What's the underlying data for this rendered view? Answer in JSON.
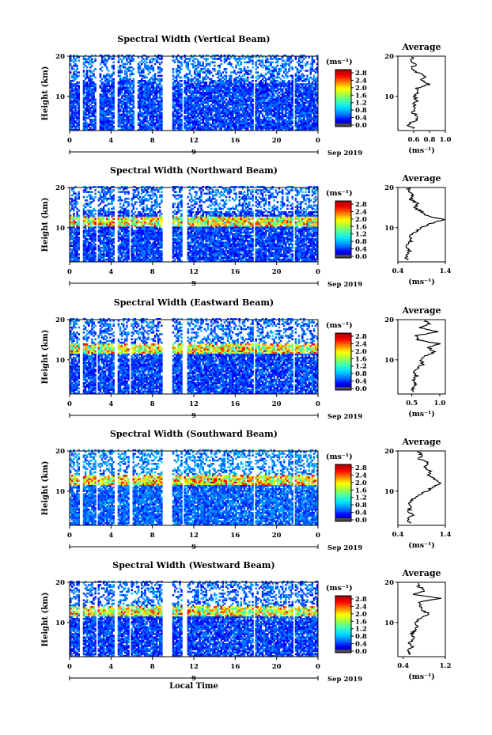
{
  "figure": {
    "x_axis_label": "Local Time",
    "date_label": "Sep 2019",
    "day_label": "9",
    "time_ticks": [
      "0",
      "4",
      "8",
      "12",
      "16",
      "20",
      "0"
    ],
    "height_ticks": [
      "20",
      "10"
    ],
    "y_axis_label": "Height (km)",
    "colorbar_unit": "(ms⁻¹)",
    "colorbar_ticks": [
      "2.8",
      "2.4",
      "2.0",
      "1.6",
      "1.2",
      "0.8",
      "0.4",
      "0.0"
    ],
    "profile_title": "Average",
    "profile_unit": "(ms⁻¹)"
  },
  "colors": {
    "colormap": [
      "#000080",
      "#0000ff",
      "#0080ff",
      "#00e0ff",
      "#40ffb0",
      "#a0ff40",
      "#ffff00",
      "#ff8000",
      "#ff0000",
      "#a00000"
    ],
    "colorbar_bottom": "#4a4a4a",
    "background": "#ffffff"
  },
  "chart_data": [
    {
      "type": "heatmap",
      "title": "Spectral Width (Vertical Beam)",
      "xlabel": "",
      "ylabel": "Height (km)",
      "xlim": [
        0,
        24
      ],
      "ylim": [
        1.5,
        20
      ],
      "color_range": [
        0.0,
        3.0
      ],
      "data_gaps_hours": [
        [
          1.0,
          1.3
        ],
        [
          2.5,
          2.9
        ],
        [
          4.3,
          4.6
        ],
        [
          6.2,
          6.6
        ],
        [
          8.9,
          10.0
        ],
        [
          10.9,
          11.1
        ],
        [
          17.8,
          18.0
        ],
        [
          21.6,
          21.8
        ]
      ],
      "enhanced_layer_km": null,
      "background_width": 0.5,
      "profile": {
        "title": "Average",
        "xlabel": "(ms⁻¹)",
        "xlim": [
          0.4,
          1.0
        ],
        "ticks": [
          "0.6",
          "0.8",
          "1.0"
        ],
        "height_km": [
          2,
          3,
          4,
          5,
          6,
          7,
          8,
          9,
          10,
          11,
          12,
          13,
          14,
          15,
          16,
          17,
          18,
          19,
          20
        ],
        "width": [
          0.6,
          0.52,
          0.62,
          0.66,
          0.58,
          0.62,
          0.6,
          0.65,
          0.6,
          0.66,
          0.63,
          0.8,
          0.7,
          0.76,
          0.64,
          0.58,
          0.62,
          0.56,
          0.6
        ]
      }
    },
    {
      "type": "heatmap",
      "title": "Spectral Width (Northward Beam)",
      "xlabel": "",
      "ylabel": "Height (km)",
      "xlim": [
        0,
        24
      ],
      "ylim": [
        1.5,
        20
      ],
      "color_range": [
        0.0,
        3.0
      ],
      "data_gaps_hours": [
        [
          1.0,
          1.3
        ],
        [
          2.5,
          2.7
        ],
        [
          4.3,
          4.6
        ],
        [
          5.7,
          5.9
        ],
        [
          8.9,
          10.0
        ],
        [
          10.9,
          11.3
        ],
        [
          17.8,
          18.0
        ],
        [
          21.6,
          21.8
        ]
      ],
      "enhanced_layer_km": 11.5,
      "background_width": 0.5,
      "profile": {
        "title": "Average",
        "xlabel": "(ms⁻¹)",
        "xlim": [
          0.4,
          1.4
        ],
        "ticks": [
          "0.4",
          "1.4"
        ],
        "height_km": [
          2,
          3,
          4,
          5,
          6,
          7,
          8,
          9,
          10,
          11,
          12,
          13,
          14,
          15,
          16,
          17,
          18,
          19,
          20
        ],
        "width": [
          0.62,
          0.55,
          0.66,
          0.58,
          0.63,
          0.7,
          0.62,
          0.78,
          0.88,
          1.1,
          1.38,
          1.0,
          0.9,
          0.75,
          0.82,
          0.66,
          0.72,
          0.62,
          0.65
        ]
      }
    },
    {
      "type": "heatmap",
      "title": "Spectral Width (Eastward Beam)",
      "xlabel": "",
      "ylabel": "Height (km)",
      "xlim": [
        0,
        24
      ],
      "ylim": [
        1.5,
        20
      ],
      "color_range": [
        0.0,
        3.0
      ],
      "data_gaps_hours": [
        [
          1.0,
          1.3
        ],
        [
          2.5,
          2.7
        ],
        [
          4.3,
          4.6
        ],
        [
          5.7,
          5.9
        ],
        [
          8.9,
          10.0
        ],
        [
          10.9,
          11.3
        ],
        [
          17.8,
          18.0
        ],
        [
          21.6,
          21.8
        ]
      ],
      "enhanced_layer_km": 12.5,
      "background_width": 0.5,
      "profile": {
        "title": "Average",
        "xlabel": "(ms⁻¹)",
        "xlim": [
          0.25,
          1.1
        ],
        "ticks": [
          "0.5",
          "1.0"
        ],
        "height_km": [
          2,
          3,
          4,
          5,
          6,
          7,
          8,
          9,
          10,
          11,
          12,
          13,
          14,
          15,
          16,
          17,
          18,
          19,
          20
        ],
        "width": [
          0.55,
          0.5,
          0.56,
          0.52,
          0.58,
          0.55,
          0.62,
          0.7,
          0.66,
          0.76,
          0.92,
          0.8,
          0.98,
          0.62,
          0.58,
          0.95,
          0.66,
          0.8,
          0.72
        ]
      }
    },
    {
      "type": "heatmap",
      "title": "Spectral Width (Southward Beam)",
      "xlabel": "",
      "ylabel": "Height (km)",
      "xlim": [
        0,
        24
      ],
      "ylim": [
        1.5,
        20
      ],
      "color_range": [
        0.0,
        3.0
      ],
      "data_gaps_hours": [
        [
          1.0,
          1.3
        ],
        [
          2.5,
          2.7
        ],
        [
          4.3,
          4.6
        ],
        [
          5.8,
          6.1
        ],
        [
          8.9,
          10.0
        ],
        [
          10.9,
          11.1
        ],
        [
          17.7,
          17.9
        ],
        [
          21.6,
          21.8
        ]
      ],
      "enhanced_layer_km": 12.5,
      "background_width": 0.6,
      "profile": {
        "title": "Average",
        "xlabel": "(ms⁻¹)",
        "xlim": [
          0.4,
          1.4
        ],
        "ticks": [
          "0.4",
          "1.4"
        ],
        "height_km": [
          2,
          3,
          4,
          5,
          6,
          7,
          8,
          9,
          10,
          11,
          12,
          13,
          14,
          15,
          16,
          17,
          18,
          19,
          20
        ],
        "width": [
          0.65,
          0.6,
          0.72,
          0.62,
          0.68,
          0.62,
          0.72,
          0.86,
          1.0,
          1.15,
          1.3,
          1.18,
          1.06,
          1.1,
          0.95,
          1.05,
          0.85,
          0.9,
          0.8
        ]
      }
    },
    {
      "type": "heatmap",
      "title": "Spectral Width (Westward Beam)",
      "xlabel": "Local Time",
      "ylabel": "Height (km)",
      "xlim": [
        0,
        24
      ],
      "ylim": [
        1.5,
        20
      ],
      "color_range": [
        0.0,
        3.0
      ],
      "data_gaps_hours": [
        [
          1.0,
          1.3
        ],
        [
          2.5,
          2.7
        ],
        [
          4.3,
          4.6
        ],
        [
          5.7,
          5.9
        ],
        [
          8.9,
          10.0
        ],
        [
          10.9,
          11.3
        ],
        [
          17.8,
          18.0
        ],
        [
          21.6,
          21.8
        ]
      ],
      "enhanced_layer_km": 12.5,
      "background_width": 0.5,
      "profile": {
        "title": "Average",
        "xlabel": "(ms⁻¹)",
        "xlim": [
          0.3,
          1.2
        ],
        "ticks": [
          "0.4",
          "1.2"
        ],
        "height_km": [
          2,
          3,
          4,
          5,
          6,
          7,
          8,
          9,
          10,
          11,
          12,
          13,
          14,
          15,
          16,
          17,
          18,
          19,
          20
        ],
        "width": [
          0.55,
          0.5,
          0.58,
          0.52,
          0.6,
          0.55,
          0.62,
          0.68,
          0.64,
          0.72,
          0.9,
          0.78,
          0.74,
          0.68,
          1.1,
          0.62,
          0.82,
          0.7,
          0.66
        ]
      }
    }
  ]
}
